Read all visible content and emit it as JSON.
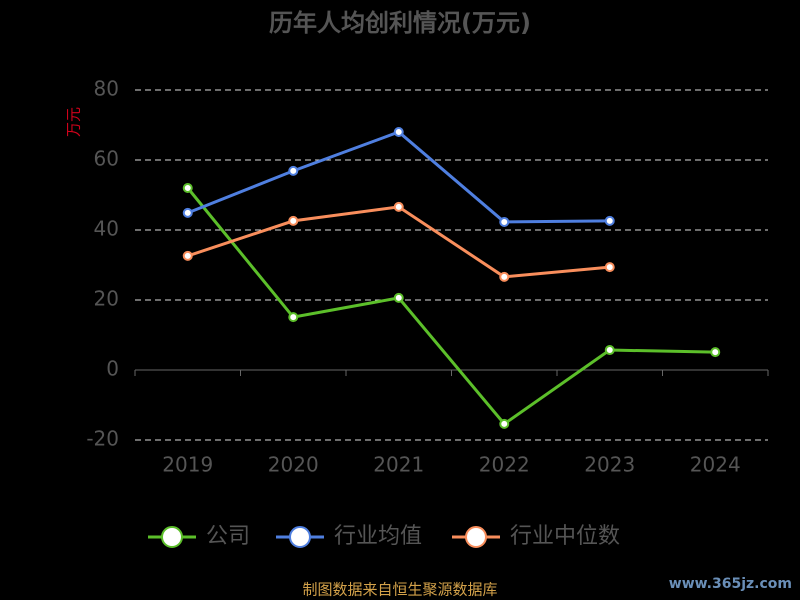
{
  "chart_data": {
    "type": "line",
    "title": "历年人均创利情况(万元)",
    "y_label": "万元",
    "categories": [
      "2019",
      "2020",
      "2021",
      "2022",
      "2023",
      "2024"
    ],
    "series": [
      {
        "name": "公司",
        "color": "#5cbf2a",
        "values": [
          52,
          15.1,
          20.6,
          -15.4,
          5.7,
          5.1
        ]
      },
      {
        "name": "行业均值",
        "color": "#4f7fe0",
        "values": [
          44.9,
          56.9,
          68,
          42.3,
          42.6,
          null
        ]
      },
      {
        "name": "行业中位数",
        "color": "#f98e5c",
        "values": [
          32.6,
          42.6,
          46.6,
          26.6,
          29.4,
          null
        ]
      }
    ],
    "ylim": [
      -20,
      80
    ],
    "yticks": [
      -20,
      0,
      20,
      40,
      60,
      80
    ],
    "grid": true,
    "source": "制图数据来自恒生聚源数据库",
    "watermark": "www.365jz.com"
  }
}
